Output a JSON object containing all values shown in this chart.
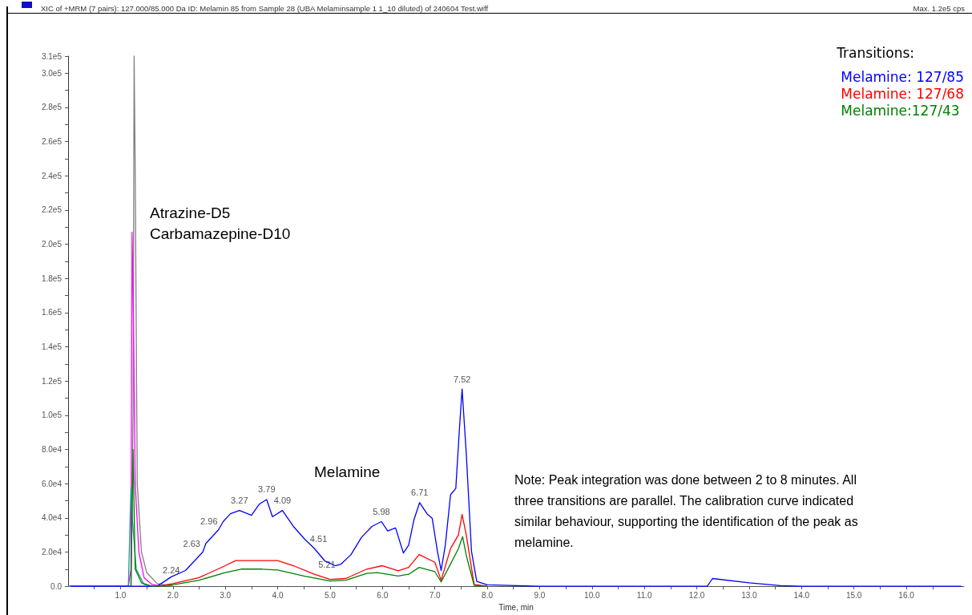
{
  "chart_data": {
    "type": "line",
    "title": "XIC of +MRM (7 pairs): 127.000/85.000 Da ID: Melamin 85 from Sample 28 (UBA Melaminsample 1 1_10 diluted) of 240604 Test.wiff",
    "subtitle": "Max. 1.2e5 cps",
    "xlabel": "Time, min",
    "legend_title": "Transitions:",
    "legend": "top right",
    "marker": "none",
    "line_style": "solid",
    "grid": false,
    "xlim": [
      0,
      17.1
    ],
    "ylim": [
      0,
      310000
    ],
    "xticks": [
      {
        "value": 0.5,
        "label": null
      },
      {
        "value": 1,
        "label": "1.0"
      },
      {
        "value": 1.5,
        "label": null
      },
      {
        "value": 2,
        "label": "2.0"
      },
      {
        "value": 2.5,
        "label": null
      },
      {
        "value": 3,
        "label": "3.0"
      },
      {
        "value": 3.5,
        "label": null
      },
      {
        "value": 4,
        "label": "4.0"
      },
      {
        "value": 4.5,
        "label": null
      },
      {
        "value": 5,
        "label": "5.0"
      },
      {
        "value": 5.5,
        "label": null
      },
      {
        "value": 6,
        "label": "6.0"
      },
      {
        "value": 6.5,
        "label": null
      },
      {
        "value": 7,
        "label": "7.0"
      },
      {
        "value": 7.5,
        "label": null
      },
      {
        "value": 8,
        "label": "8.0"
      },
      {
        "value": 8.5,
        "label": null
      },
      {
        "value": 9,
        "label": "9.0"
      },
      {
        "value": 9.5,
        "label": null
      },
      {
        "value": 10,
        "label": "10.0"
      },
      {
        "value": 10.5,
        "label": null
      },
      {
        "value": 11,
        "label": "11.0"
      },
      {
        "value": 11.5,
        "label": null
      },
      {
        "value": 12,
        "label": "12.0"
      },
      {
        "value": 12.5,
        "label": null
      },
      {
        "value": 13,
        "label": "13.0"
      },
      {
        "value": 13.5,
        "label": null
      },
      {
        "value": 14,
        "label": "14.0"
      },
      {
        "value": 14.5,
        "label": null
      },
      {
        "value": 15,
        "label": "15.0"
      },
      {
        "value": 15.5,
        "label": null
      },
      {
        "value": 16,
        "label": "16.0"
      },
      {
        "value": 16.5,
        "label": null
      }
    ],
    "yticks": [
      {
        "value": 0,
        "label": "0.0"
      },
      {
        "value": 10000,
        "label": null
      },
      {
        "value": 20000,
        "label": "2.0e4"
      },
      {
        "value": 30000,
        "label": null
      },
      {
        "value": 40000,
        "label": "4.0e4"
      },
      {
        "value": 50000,
        "label": null
      },
      {
        "value": 60000,
        "label": "6.0e4"
      },
      {
        "value": 70000,
        "label": null
      },
      {
        "value": 80000,
        "label": "8.0e4"
      },
      {
        "value": 90000,
        "label": null
      },
      {
        "value": 100000,
        "label": "1.0e5"
      },
      {
        "value": 110000,
        "label": null
      },
      {
        "value": 120000,
        "label": "1.2e5"
      },
      {
        "value": 130000,
        "label": null
      },
      {
        "value": 140000,
        "label": "1.4e5"
      },
      {
        "value": 150000,
        "label": null
      },
      {
        "value": 160000,
        "label": "1.6e5"
      },
      {
        "value": 170000,
        "label": null
      },
      {
        "value": 180000,
        "label": "1.8e5"
      },
      {
        "value": 190000,
        "label": null
      },
      {
        "value": 200000,
        "label": "2.0e5"
      },
      {
        "value": 210000,
        "label": null
      },
      {
        "value": 220000,
        "label": "2.2e5"
      },
      {
        "value": 230000,
        "label": null
      },
      {
        "value": 240000,
        "label": "2.4e5"
      },
      {
        "value": 250000,
        "label": null
      },
      {
        "value": 260000,
        "label": "2.6e5"
      },
      {
        "value": 270000,
        "label": null
      },
      {
        "value": 280000,
        "label": "2.8e5"
      },
      {
        "value": 290000,
        "label": null
      },
      {
        "value": 300000,
        "label": "3.0e5"
      },
      {
        "value": 310000,
        "label": "3.1e5"
      }
    ],
    "series": [
      {
        "color": "#808080",
        "x": [
          0,
          1.2,
          1.24,
          1.26,
          1.28,
          1.32,
          1.4,
          1.5,
          1.7,
          2.0
        ],
        "values": [
          0,
          0,
          100000,
          310000,
          245000,
          60000,
          20000,
          8000,
          1500,
          0
        ]
      },
      {
        "color": "#ff00ff",
        "x": [
          0,
          1.15,
          1.2,
          1.22,
          1.25,
          1.28,
          1.35,
          1.45,
          1.6,
          1.8
        ],
        "values": [
          0,
          0,
          10000,
          207000,
          150000,
          60000,
          20000,
          5000,
          1000,
          0
        ]
      },
      {
        "color": "#1a9a9a",
        "x": [
          0,
          1.15,
          1.2,
          1.23,
          1.3,
          1.45,
          1.6
        ],
        "values": [
          0,
          0,
          58000,
          38000,
          10000,
          1000,
          0
        ]
      },
      {
        "name": "Melamine: 127/85",
        "color": "#0000ff",
        "x": [
          0.05,
          1.7,
          1.97,
          2.24,
          2.57,
          2.63,
          2.87,
          2.96,
          3.1,
          3.27,
          3.5,
          3.65,
          3.79,
          3.9,
          4.09,
          4.3,
          4.51,
          4.7,
          4.9,
          5.1,
          5.21,
          5.4,
          5.6,
          5.8,
          5.98,
          6.1,
          6.25,
          6.4,
          6.5,
          6.6,
          6.71,
          6.85,
          6.95,
          7.05,
          7.12,
          7.2,
          7.3,
          7.4,
          7.47,
          7.52,
          7.6,
          7.7,
          7.8,
          8.0,
          9.0,
          12.2,
          12.3,
          13.0,
          13.6,
          14.0,
          17.05
        ],
        "values": [
          0,
          0,
          5500,
          9200,
          20000,
          25000,
          33000,
          37800,
          42400,
          44300,
          41500,
          48000,
          50700,
          40600,
          44300,
          35000,
          27700,
          22100,
          14800,
          12000,
          12900,
          18500,
          28600,
          35000,
          37800,
          32300,
          34100,
          19400,
          24000,
          38700,
          48900,
          42400,
          39700,
          20300,
          9200,
          24000,
          53500,
          57200,
          92300,
          115300,
          77500,
          20300,
          2800,
          800,
          0,
          0,
          4500,
          2000,
          300,
          0,
          0
        ]
      },
      {
        "name": "Melamine: 127/68",
        "color": "#ff0000",
        "x": [
          1.7,
          2.0,
          2.5,
          3.0,
          3.2,
          3.5,
          4.0,
          4.3,
          4.7,
          5.0,
          5.3,
          5.7,
          6.0,
          6.3,
          6.5,
          6.7,
          7.0,
          7.12,
          7.3,
          7.45,
          7.52,
          7.6,
          7.75,
          8.0
        ],
        "values": [
          0,
          1500,
          5000,
          12000,
          15000,
          15000,
          15000,
          12000,
          7000,
          4000,
          4500,
          10000,
          12000,
          9000,
          11000,
          18500,
          14000,
          3500,
          22000,
          30000,
          42000,
          30000,
          1000,
          0
        ]
      },
      {
        "name": "Melamine:127/43",
        "color": "#008000",
        "x": [
          1.2,
          1.24,
          1.28,
          1.4,
          1.6,
          1.7,
          2.0,
          2.5,
          3.0,
          3.3,
          3.7,
          4.0,
          4.5,
          5.0,
          5.3,
          5.7,
          5.9,
          6.3,
          6.5,
          6.7,
          7.0,
          7.12,
          7.3,
          7.45,
          7.53,
          7.6,
          7.75,
          8.0
        ],
        "values": [
          0,
          80000,
          10000,
          2000,
          0,
          0,
          800,
          3500,
          8000,
          10000,
          10000,
          9500,
          6000,
          3000,
          3500,
          7500,
          8000,
          6000,
          7000,
          11000,
          8500,
          2500,
          13000,
          22000,
          29000,
          18000,
          500,
          0
        ]
      }
    ],
    "annotations": [
      "Atrazine-D5\nCarbamazepine-D10",
      "Melamine",
      "Note: Peak integration was done between 2 to 8 minutes. All\nthree transitions are parallel. The calibration curve indicated\nsimilar behaviour, supporting the identification of the peak as\nmelamine.",
      {
        "text": "2.24",
        "x": 2.24,
        "y": 9200
      },
      {
        "text": "2.63",
        "x": 2.63,
        "y": 25000
      },
      {
        "text": "2.96",
        "x": 2.96,
        "y": 37800
      },
      {
        "text": "3.27",
        "x": 3.27,
        "y": 44300
      },
      {
        "text": "3.79",
        "x": 3.79,
        "y": 50700
      },
      {
        "text": "4.09",
        "x": 4.09,
        "y": 44300
      },
      {
        "text": "4.51",
        "x": 4.51,
        "y": 27700
      },
      {
        "text": "5.21",
        "x": 5.21,
        "y": 12900
      },
      {
        "text": "5.98",
        "x": 5.98,
        "y": 37800
      },
      {
        "text": "6.71",
        "x": 6.71,
        "y": 48900
      },
      {
        "text": "7.52",
        "x": 7.52,
        "y": 115300
      }
    ]
  }
}
